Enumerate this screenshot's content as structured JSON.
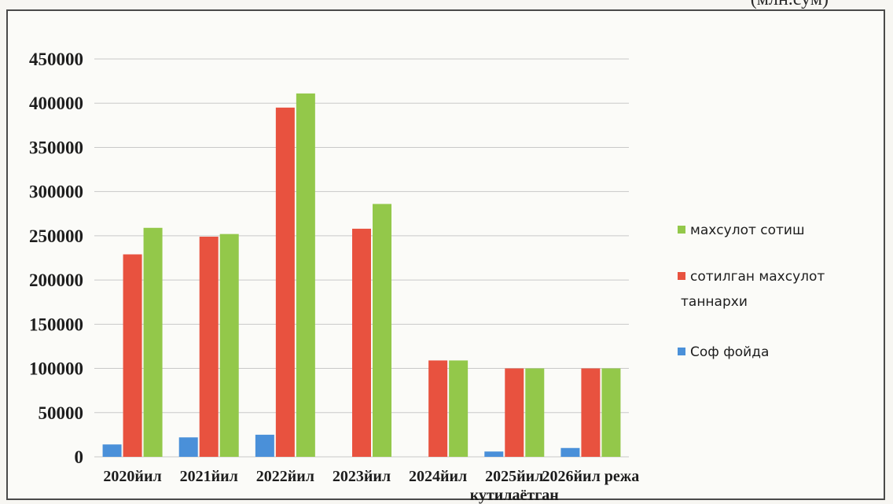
{
  "unit_label": "(млн.сум)",
  "chart_data": {
    "type": "bar",
    "categories": [
      [
        "2020йил"
      ],
      [
        "2021йил"
      ],
      [
        "2022йил"
      ],
      [
        "2023йил"
      ],
      [
        "2024йил"
      ],
      [
        "2025йил",
        "кутилаётган"
      ],
      [
        "2026йил режа"
      ]
    ],
    "series": [
      {
        "name": "Соф фойда",
        "color": "#4a90d9",
        "values": [
          14000,
          22000,
          25000,
          0,
          0,
          6000,
          10000
        ]
      },
      {
        "name": "сотилган махсулот таннархи",
        "color": "#e8523f",
        "values": [
          229000,
          249000,
          395000,
          258000,
          109000,
          100000,
          100000
        ]
      },
      {
        "name": "махсулот сотиш",
        "color": "#93c84a",
        "values": [
          259000,
          252000,
          411000,
          286000,
          109000,
          100000,
          100000
        ]
      }
    ],
    "legend": [
      {
        "lines": [
          "махсулот сотиш"
        ],
        "color": "#93c84a"
      },
      {
        "lines": [
          "сотилган махсулот",
          "таннархи"
        ],
        "color": "#e8523f"
      },
      {
        "lines": [
          "Соф фойда"
        ],
        "color": "#4a90d9"
      }
    ],
    "y_ticks": [
      0,
      50000,
      100000,
      150000,
      200000,
      250000,
      300000,
      350000,
      400000,
      450000
    ],
    "ylim": [
      0,
      450000
    ],
    "grid": true,
    "legend_position": "right"
  }
}
